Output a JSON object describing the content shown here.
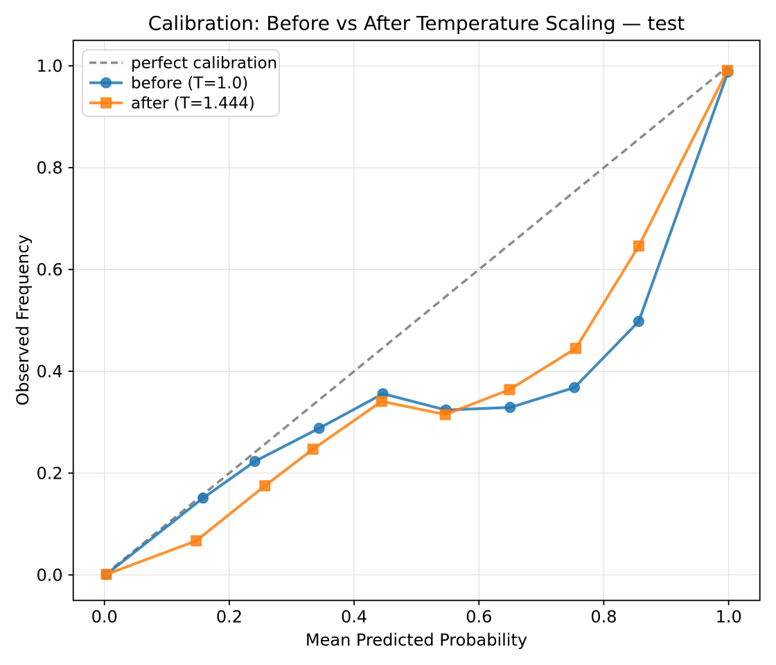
{
  "chart_data": {
    "type": "line",
    "title": "Calibration: Before vs After Temperature Scaling — test",
    "xlabel": "Mean Predicted Probability",
    "ylabel": "Observed Frequency",
    "xlim": [
      -0.05,
      1.05
    ],
    "ylim": [
      -0.05,
      1.05
    ],
    "xticks": [
      0.0,
      0.2,
      0.4,
      0.6,
      0.8,
      1.0
    ],
    "yticks": [
      0.0,
      0.2,
      0.4,
      0.6,
      0.8,
      1.0
    ],
    "grid": true,
    "legend_position": "upper-left",
    "series": [
      {
        "name": "perfect calibration",
        "style": "dashed",
        "marker": "none",
        "color": "#808080",
        "alpha": 0.9,
        "x": [
          0.0,
          1.0
        ],
        "y": [
          0.0,
          1.0
        ]
      },
      {
        "name": "before (T=1.0)",
        "style": "solid",
        "marker": "circle",
        "color": "#1f77b4",
        "alpha": 0.85,
        "x": [
          0.003,
          0.158,
          0.241,
          0.344,
          0.446,
          0.547,
          0.65,
          0.753,
          0.856,
          0.999
        ],
        "y": [
          0.001,
          0.151,
          0.223,
          0.288,
          0.356,
          0.324,
          0.329,
          0.368,
          0.498,
          0.988
        ]
      },
      {
        "name": "after (T=1.444)",
        "style": "solid",
        "marker": "square",
        "color": "#ff7f0e",
        "alpha": 0.85,
        "x": [
          0.003,
          0.147,
          0.257,
          0.334,
          0.444,
          0.546,
          0.649,
          0.755,
          0.856,
          0.998
        ],
        "y": [
          0.001,
          0.067,
          0.175,
          0.247,
          0.341,
          0.315,
          0.364,
          0.445,
          0.646,
          0.991
        ]
      }
    ],
    "colors": {
      "grid": "#b0b0b0",
      "spine": "#000000",
      "legend_border": "#cccccc",
      "background": "#ffffff"
    }
  }
}
